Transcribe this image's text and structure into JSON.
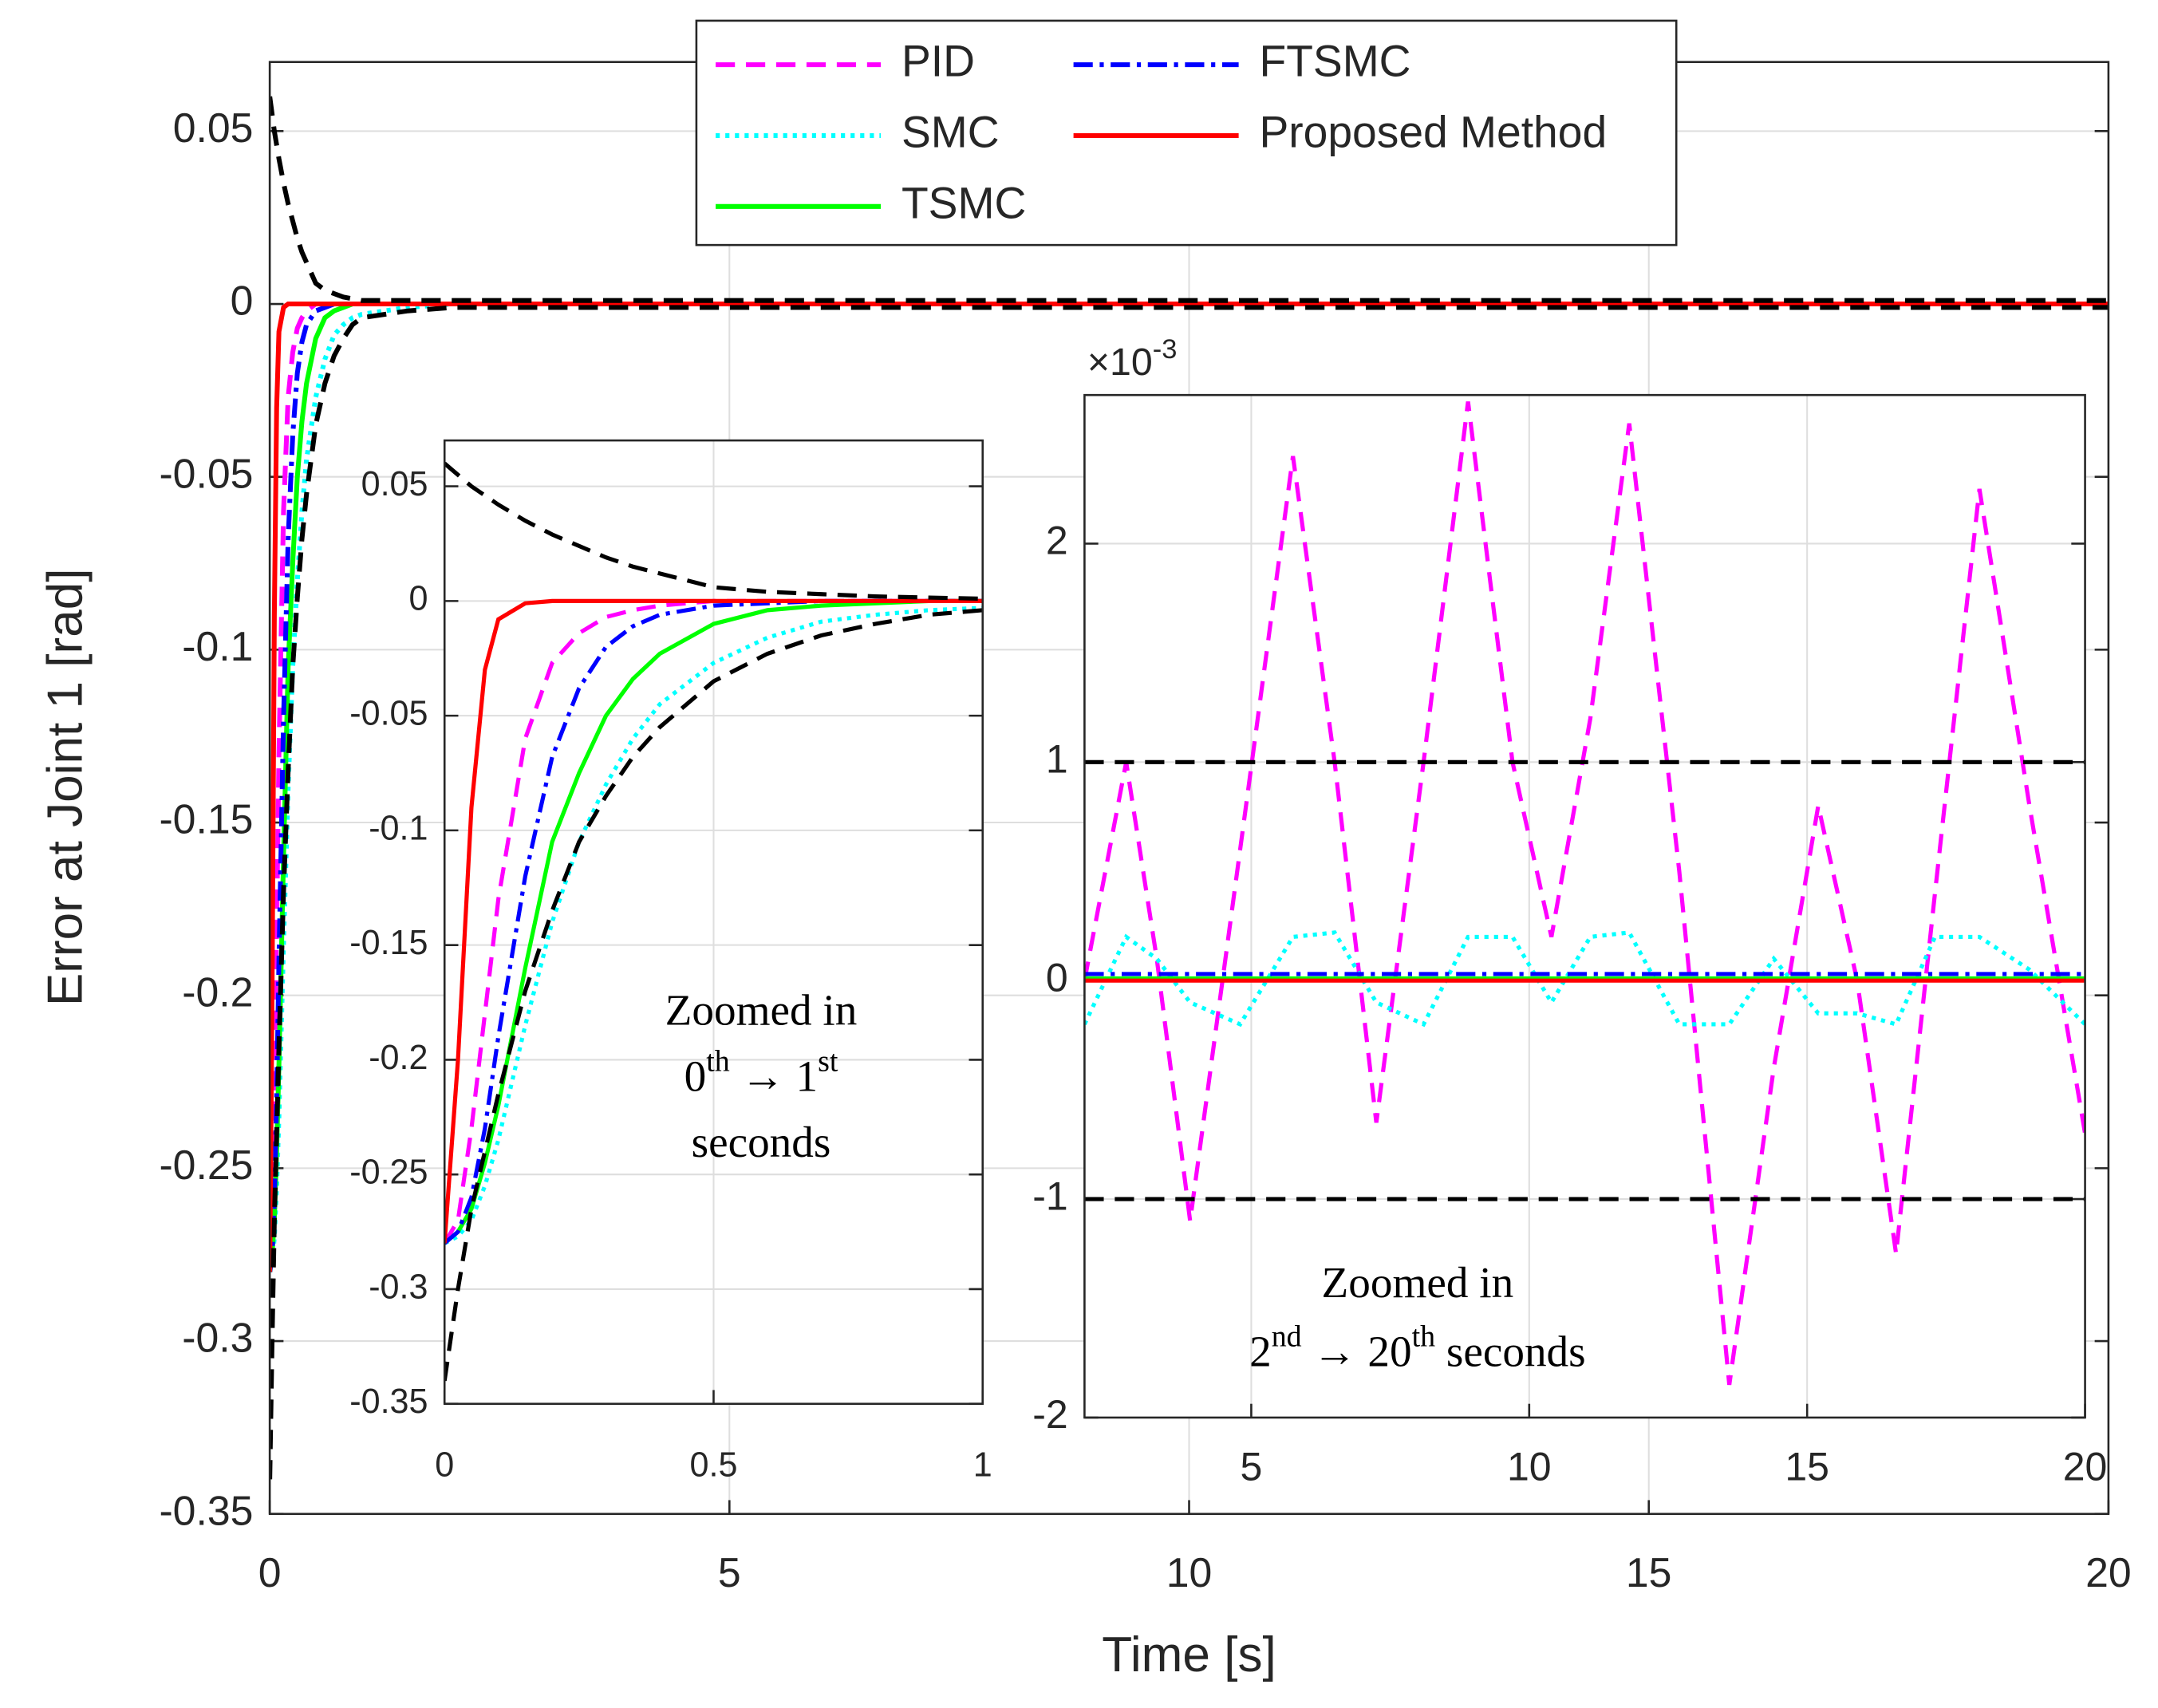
{
  "chart_data": [
    {
      "type": "line",
      "xlabel": "Time [s]",
      "ylabel": "Error at Joint 1 [rad]",
      "x": [
        0,
        0.025,
        0.05,
        0.075,
        0.1,
        0.15,
        0.2,
        0.25,
        0.3,
        0.35,
        0.4,
        0.5,
        0.6,
        0.7,
        0.8,
        0.9,
        1,
        1.5,
        2,
        5,
        10,
        15,
        20
      ],
      "xlim": [
        0,
        20
      ],
      "xticks": [
        0,
        5,
        10,
        15,
        20
      ],
      "ylim": [
        -0.35,
        0.07
      ],
      "yticks": [
        0.05,
        0,
        -0.05,
        -0.1,
        -0.15,
        -0.2,
        -0.25,
        -0.3,
        -0.35
      ],
      "grid": true,
      "legend": "upper center",
      "series": [
        {
          "name": "PID",
          "color": "#ff00ff",
          "style": "dashed",
          "values": [
            -0.28,
            -0.27,
            -0.23,
            -0.18,
            -0.13,
            -0.06,
            -0.027,
            -0.014,
            -0.007,
            -0.004,
            -0.002,
            0,
            0,
            0,
            0,
            0,
            0,
            0,
            0,
            0,
            0,
            0,
            0
          ]
        },
        {
          "name": "SMC",
          "color": "#00ffff",
          "style": "dotted",
          "values": [
            -0.28,
            -0.277,
            -0.27,
            -0.255,
            -0.235,
            -0.185,
            -0.14,
            -0.105,
            -0.08,
            -0.06,
            -0.045,
            -0.027,
            -0.016,
            -0.009,
            -0.006,
            -0.004,
            -0.003,
            -0.001,
            0,
            0,
            0,
            0,
            0
          ]
        },
        {
          "name": "TSMC",
          "color": "#00ff00",
          "style": "solid",
          "values": [
            -0.28,
            -0.275,
            -0.265,
            -0.245,
            -0.22,
            -0.16,
            -0.105,
            -0.075,
            -0.05,
            -0.034,
            -0.023,
            -0.01,
            -0.004,
            -0.002,
            -0.001,
            0,
            0,
            0,
            0,
            0,
            0,
            0,
            0
          ]
        },
        {
          "name": "FTSMC",
          "color": "#0000ff",
          "style": "dashdot",
          "values": [
            -0.28,
            -0.275,
            -0.26,
            -0.23,
            -0.19,
            -0.12,
            -0.068,
            -0.038,
            -0.02,
            -0.011,
            -0.006,
            -0.002,
            -0.001,
            0,
            0,
            0,
            0,
            0,
            0,
            0,
            0,
            0,
            0
          ]
        },
        {
          "name": "Proposed Method",
          "color": "#ff0000",
          "style": "solid",
          "values": [
            -0.28,
            -0.2,
            -0.09,
            -0.03,
            -0.008,
            -0.001,
            0,
            0,
            0,
            0,
            0,
            0,
            0,
            0,
            0,
            0,
            0,
            0,
            0,
            0,
            0,
            0,
            0
          ]
        },
        {
          "color": "#000000",
          "style": "dashed",
          "values": [
            0.06,
            0.055,
            0.05,
            0.046,
            0.042,
            0.035,
            0.029,
            0.024,
            0.019,
            0.015,
            0.012,
            0.006,
            0.004,
            0.003,
            0.002,
            0.0015,
            0.001,
            0.001,
            0.001,
            0.001,
            0.001,
            0.001,
            0.001
          ]
        },
        {
          "color": "#000000",
          "style": "dashed",
          "values": [
            -0.34,
            -0.3,
            -0.265,
            -0.24,
            -0.215,
            -0.17,
            -0.135,
            -0.105,
            -0.085,
            -0.068,
            -0.055,
            -0.035,
            -0.023,
            -0.015,
            -0.01,
            -0.006,
            -0.004,
            -0.002,
            -0.001,
            -0.001,
            -0.001,
            -0.001,
            -0.001
          ]
        }
      ]
    },
    {
      "type": "line",
      "x": [
        0,
        0.025,
        0.05,
        0.075,
        0.1,
        0.15,
        0.2,
        0.25,
        0.3,
        0.35,
        0.4,
        0.5,
        0.6,
        0.7,
        0.8,
        0.9,
        1
      ],
      "xlim": [
        0,
        1
      ],
      "xticks": [
        0,
        0.5,
        1
      ],
      "ylim": [
        -0.35,
        0.07
      ],
      "yticks": [
        0.05,
        0,
        -0.05,
        -0.1,
        -0.15,
        -0.2,
        -0.25,
        -0.3,
        -0.35
      ],
      "grid": true,
      "annotation": [
        [
          "Zoomed in"
        ],
        [
          "0",
          "th",
          " → 1",
          "st"
        ],
        [
          "seconds"
        ]
      ],
      "series": [
        {
          "color": "#ff00ff",
          "style": "dashed",
          "values": [
            -0.28,
            -0.27,
            -0.23,
            -0.18,
            -0.13,
            -0.06,
            -0.027,
            -0.014,
            -0.007,
            -0.004,
            -0.002,
            0,
            0,
            0,
            0,
            0,
            0
          ]
        },
        {
          "color": "#00ffff",
          "style": "dotted",
          "values": [
            -0.28,
            -0.277,
            -0.27,
            -0.255,
            -0.235,
            -0.185,
            -0.14,
            -0.105,
            -0.08,
            -0.06,
            -0.045,
            -0.027,
            -0.016,
            -0.009,
            -0.006,
            -0.004,
            -0.003
          ]
        },
        {
          "color": "#00ff00",
          "style": "solid",
          "values": [
            -0.28,
            -0.275,
            -0.265,
            -0.245,
            -0.22,
            -0.16,
            -0.105,
            -0.075,
            -0.05,
            -0.034,
            -0.023,
            -0.01,
            -0.004,
            -0.002,
            -0.001,
            0,
            0
          ]
        },
        {
          "color": "#0000ff",
          "style": "dashdot",
          "values": [
            -0.28,
            -0.275,
            -0.26,
            -0.23,
            -0.19,
            -0.12,
            -0.068,
            -0.038,
            -0.02,
            -0.011,
            -0.006,
            -0.002,
            -0.001,
            0,
            0,
            0,
            0
          ]
        },
        {
          "color": "#ff0000",
          "style": "solid",
          "values": [
            -0.28,
            -0.2,
            -0.09,
            -0.03,
            -0.008,
            -0.001,
            0,
            0,
            0,
            0,
            0,
            0,
            0,
            0,
            0,
            0,
            0
          ]
        },
        {
          "color": "#000000",
          "style": "dashed",
          "values": [
            0.06,
            0.055,
            0.05,
            0.046,
            0.042,
            0.035,
            0.029,
            0.024,
            0.019,
            0.015,
            0.012,
            0.006,
            0.004,
            0.003,
            0.002,
            0.0015,
            0.001
          ]
        },
        {
          "color": "#000000",
          "style": "dashed",
          "values": [
            -0.34,
            -0.3,
            -0.265,
            -0.24,
            -0.215,
            -0.17,
            -0.135,
            -0.105,
            -0.085,
            -0.068,
            -0.055,
            -0.035,
            -0.023,
            -0.015,
            -0.01,
            -0.006,
            -0.004
          ]
        }
      ]
    },
    {
      "type": "line",
      "x": [
        2,
        2.75,
        3.3,
        3.9,
        4.8,
        5.75,
        6.5,
        7.25,
        8.1,
        8.9,
        9.7,
        10.4,
        11.1,
        11.8,
        12.7,
        13.6,
        14.4,
        15.2,
        15.9,
        16.6,
        17.3,
        18.1,
        19,
        20
      ],
      "xlim": [
        2,
        20
      ],
      "xticks": [
        5,
        10,
        15,
        20
      ],
      "ylim": [
        -2,
        2.68
      ],
      "yticks": [
        -2,
        -1,
        0,
        1,
        2
      ],
      "grid": true,
      "exponent": [
        "×10",
        "-3"
      ],
      "annotation": [
        [
          "Zoomed in"
        ],
        [
          "2",
          "nd",
          " → 20",
          "th",
          " seconds"
        ]
      ],
      "series": [
        {
          "color": "#ff00ff",
          "style": "dashed",
          "values": [
            0,
            1.0,
            0.1,
            -1.1,
            0.6,
            2.4,
            1.0,
            -0.65,
            1.0,
            2.65,
            1.0,
            0.2,
            1.2,
            2.55,
            0.5,
            -1.85,
            -0.4,
            0.8,
            0,
            -1.25,
            0.4,
            2.25,
            0.8,
            -0.7
          ]
        },
        {
          "color": "#00ffff",
          "style": "dotted",
          "values": [
            -0.2,
            0.2,
            0.1,
            -0.1,
            -0.2,
            0.2,
            0.22,
            -0.1,
            -0.2,
            0.2,
            0.2,
            -0.1,
            0.2,
            0.22,
            -0.2,
            -0.2,
            0.1,
            -0.15,
            -0.15,
            -0.2,
            0.2,
            0.2,
            0.05,
            -0.2
          ]
        },
        {
          "color": "#00ff00",
          "style": "solid",
          "values": [
            0.01,
            0.01,
            0.01,
            0.01,
            0.01,
            0.01,
            0.01,
            0.01,
            0.01,
            0.01,
            0.01,
            0.01,
            0.01,
            0.01,
            0.01,
            0.01,
            0.01,
            0.01,
            0.01,
            0.01,
            0.01,
            0.01,
            0.01,
            0.01
          ]
        },
        {
          "color": "#0000ff",
          "style": "dashdot",
          "values": [
            0.03,
            0.03,
            0.03,
            0.03,
            0.03,
            0.03,
            0.03,
            0.03,
            0.03,
            0.03,
            0.03,
            0.03,
            0.03,
            0.03,
            0.03,
            0.03,
            0.03,
            0.03,
            0.03,
            0.03,
            0.03,
            0.03,
            0.03,
            0.03
          ]
        },
        {
          "color": "#ff0000",
          "style": "solid",
          "values": [
            0,
            0,
            0,
            0,
            0,
            0,
            0,
            0,
            0,
            0,
            0,
            0,
            0,
            0,
            0,
            0,
            0,
            0,
            0,
            0,
            0,
            0,
            0,
            0
          ]
        },
        {
          "color": "#000000",
          "style": "dashed",
          "values": [
            1,
            1,
            1,
            1,
            1,
            1,
            1,
            1,
            1,
            1,
            1,
            1,
            1,
            1,
            1,
            1,
            1,
            1,
            1,
            1,
            1,
            1,
            1,
            1
          ]
        },
        {
          "color": "#000000",
          "style": "dashed",
          "values": [
            -1,
            -1,
            -1,
            -1,
            -1,
            -1,
            -1,
            -1,
            -1,
            -1,
            -1,
            -1,
            -1,
            -1,
            -1,
            -1,
            -1,
            -1,
            -1,
            -1,
            -1,
            -1,
            -1,
            -1
          ]
        }
      ]
    }
  ]
}
